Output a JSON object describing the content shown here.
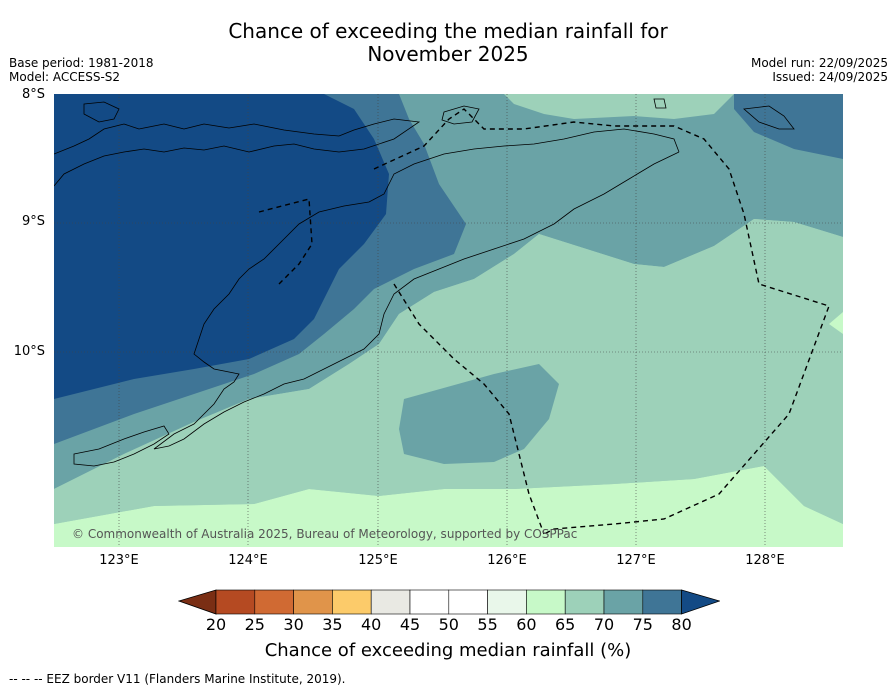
{
  "title": {
    "line1": "Chance of exceeding the median rainfall for",
    "line2": "November 2025"
  },
  "meta_left": {
    "base_period": "Base period: 1981-2018",
    "model": "Model: ACCESS-S2"
  },
  "meta_right": {
    "model_run": "Model run: 22/09/2025",
    "issued": "Issued: 24/09/2025"
  },
  "map": {
    "lat_labels": [
      "8°S",
      "9°S",
      "10°S"
    ],
    "lon_labels": [
      "123°E",
      "124°E",
      "125°E",
      "126°E",
      "127°E",
      "128°E"
    ],
    "copyright": "© Commonwealth of Australia 2025, Bureau of Meteorology, supported by COSPPac",
    "category_colors": {
      "65-70": "#9dd1b9",
      "70-75": "#6aa3a6",
      "75-80": "#3f7596",
      "80+": "#134a85",
      "60-65": "#c7f9c8"
    }
  },
  "colorbar": {
    "ticks": [
      "20",
      "25",
      "30",
      "35",
      "40",
      "45",
      "50",
      "55",
      "60",
      "65",
      "70",
      "75",
      "80"
    ],
    "colors": [
      "#7a2e14",
      "#b54a22",
      "#d06a33",
      "#e0944a",
      "#fccb6a",
      "#e9e9e3",
      "#ffffff",
      "#ffffff",
      "#e9f7ea",
      "#c7f9c8",
      "#9dd1b9",
      "#6aa3a6",
      "#3f7596",
      "#134a85"
    ],
    "label": "Chance of exceeding median rainfall (%)"
  },
  "footnote": "-- -- -- EEZ border V11 (Flanders Marine Institute, 2019)."
}
